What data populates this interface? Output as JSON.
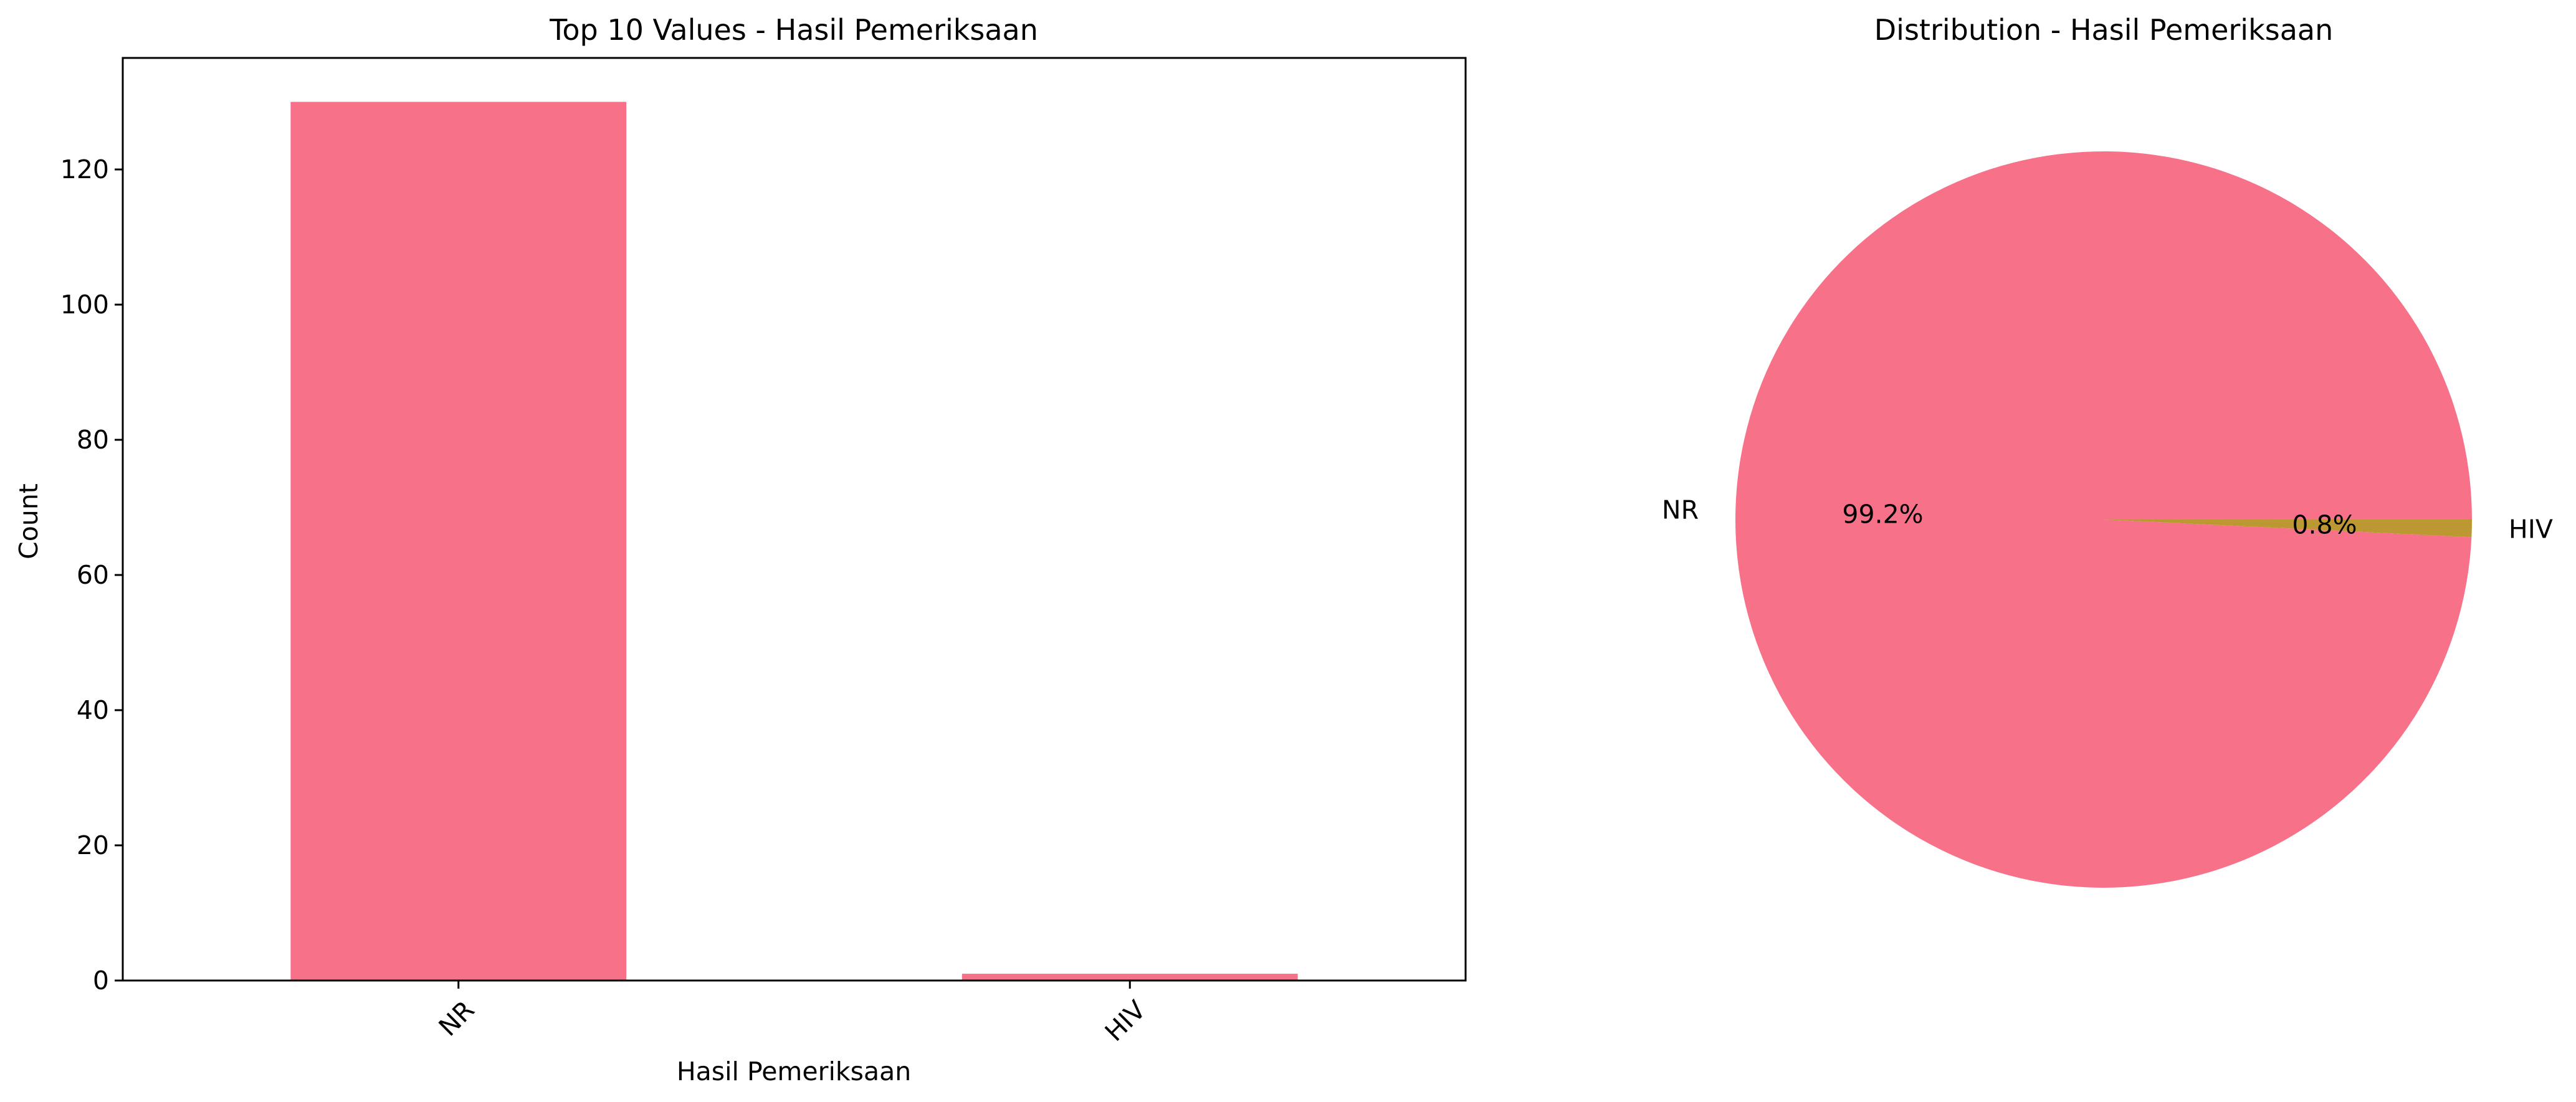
{
  "chart_data": [
    {
      "type": "bar",
      "title": "Top 10 Values - Hasil Pemeriksaan",
      "xlabel": "Hasil Pemeriksaan",
      "ylabel": "Count",
      "categories": [
        "NR",
        "HIV"
      ],
      "values": [
        130,
        1
      ],
      "ylim": [
        0,
        136.5
      ],
      "yticks": [
        0,
        20,
        40,
        60,
        80,
        100,
        120
      ],
      "color": "#f77189",
      "grid": false
    },
    {
      "type": "pie",
      "title": "Distribution - Hasil Pemeriksaan",
      "labels": [
        "NR",
        "HIV"
      ],
      "values": [
        130,
        1
      ],
      "percent_labels": [
        "99.2%",
        "0.8%"
      ],
      "colors": [
        "#f77189",
        "#bb9832"
      ]
    }
  ]
}
